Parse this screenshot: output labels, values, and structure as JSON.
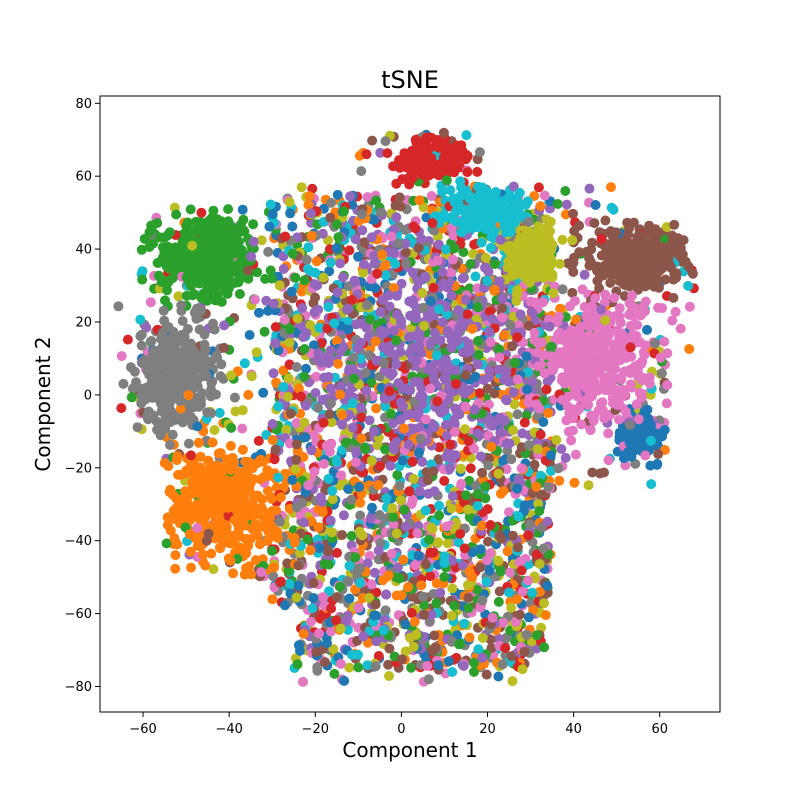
{
  "chart_data": {
    "type": "scatter",
    "title": "tSNE",
    "xlabel": "Component 1",
    "ylabel": "Component 2",
    "xlim": [
      -70,
      74
    ],
    "ylim": [
      -87,
      82
    ],
    "xticks": [
      -60,
      -40,
      -20,
      0,
      20,
      40,
      60
    ],
    "yticks": [
      -80,
      -60,
      -40,
      -20,
      0,
      20,
      40,
      60,
      80
    ],
    "xtick_labels": [
      "−60",
      "−40",
      "−20",
      "0",
      "20",
      "40",
      "60"
    ],
    "ytick_labels": [
      "−80",
      "−60",
      "−40",
      "−20",
      "0",
      "20",
      "40",
      "60",
      "80"
    ],
    "grid": false,
    "legend": "none",
    "palette": [
      "#1f77b4",
      "#ff7f0e",
      "#2ca02c",
      "#d62728",
      "#9467bd",
      "#8c564b",
      "#e377c2",
      "#7f7f7f",
      "#bcbd22",
      "#17becf"
    ],
    "clusters": [
      {
        "label": "0",
        "color": "#1f77b4",
        "center": [
          55,
          -12
        ],
        "spread": [
          5,
          6
        ],
        "count": 60
      },
      {
        "label": "1",
        "color": "#ff7f0e",
        "center": [
          -42,
          -30
        ],
        "spread": [
          11,
          14
        ],
        "count": 240
      },
      {
        "label": "2",
        "color": "#2ca02c",
        "center": [
          -45,
          38
        ],
        "spread": [
          10,
          9
        ],
        "count": 220
      },
      {
        "label": "3",
        "color": "#d62728",
        "center": [
          7,
          65
        ],
        "spread": [
          7,
          5
        ],
        "count": 90
      },
      {
        "label": "4",
        "color": "#9467bd",
        "center": [
          5,
          10
        ],
        "spread": [
          25,
          30
        ],
        "count": 180
      },
      {
        "label": "5",
        "color": "#8c564b",
        "center": [
          55,
          37
        ],
        "spread": [
          10,
          8
        ],
        "count": 170
      },
      {
        "label": "6",
        "color": "#e377c2",
        "center": [
          45,
          10
        ],
        "spread": [
          14,
          15
        ],
        "count": 200
      },
      {
        "label": "7",
        "color": "#7f7f7f",
        "center": [
          -52,
          5
        ],
        "spread": [
          8,
          12
        ],
        "count": 180
      },
      {
        "label": "8",
        "color": "#bcbd22",
        "center": [
          30,
          38
        ],
        "spread": [
          6,
          8
        ],
        "count": 100
      },
      {
        "label": "9",
        "color": "#17becf",
        "center": [
          20,
          50
        ],
        "spread": [
          8,
          6
        ],
        "count": 90
      }
    ],
    "background_mix": {
      "x_range": [
        -30,
        35
      ],
      "y_range": [
        -75,
        55
      ],
      "count": 2200
    },
    "marker_radius_data_units": null,
    "series_note": ""
  }
}
